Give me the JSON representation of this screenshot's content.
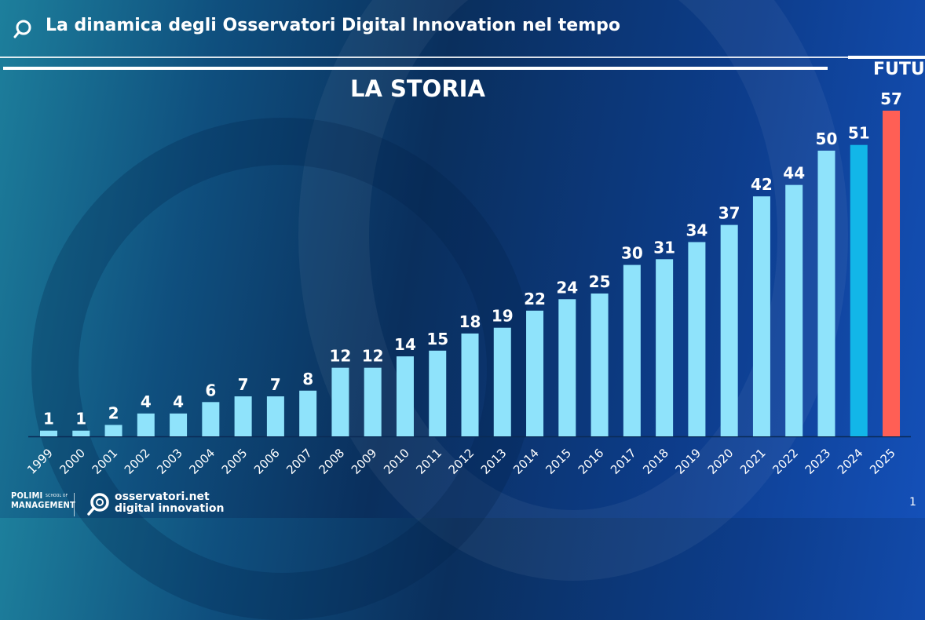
{
  "header": {
    "title": "La dinamica degli Osservatori Digital Innovation nel tempo"
  },
  "section_labels": {
    "history": "LA STORIA",
    "future": "FUTURO"
  },
  "footer": {
    "polimi_line1": "POLIMI",
    "polimi_small": "SCHOOL OF",
    "polimi_line2": "MANAGEMENT",
    "logo_line1": "osservatori.net",
    "logo_line2": "digital innovation",
    "page_number": "1"
  },
  "colors": {
    "history_bar": "#8fe3fb",
    "current_bar": "#12b6e8",
    "future_bar": "#ff5f55",
    "axis": "#0a2a55"
  },
  "chart_data": {
    "type": "bar",
    "categories": [
      "1999",
      "2000",
      "2001",
      "2002",
      "2003",
      "2004",
      "2005",
      "2006",
      "2007",
      "2008",
      "2009",
      "2010",
      "2011",
      "2012",
      "2013",
      "2014",
      "2015",
      "2016",
      "2017",
      "2018",
      "2019",
      "2020",
      "2021",
      "2022",
      "2023",
      "2024",
      "2025"
    ],
    "values": [
      1,
      1,
      2,
      4,
      4,
      6,
      7,
      7,
      8,
      12,
      12,
      14,
      15,
      18,
      19,
      22,
      24,
      25,
      30,
      31,
      34,
      37,
      42,
      44,
      50,
      51,
      57
    ],
    "bar_groups": [
      "history",
      "history",
      "history",
      "history",
      "history",
      "history",
      "history",
      "history",
      "history",
      "history",
      "history",
      "history",
      "history",
      "history",
      "history",
      "history",
      "history",
      "history",
      "history",
      "history",
      "history",
      "history",
      "history",
      "history",
      "history",
      "current",
      "future"
    ],
    "title": "",
    "xlabel": "",
    "ylabel": "",
    "ylim": [
      0,
      57
    ],
    "grid": false,
    "legend": "none",
    "data_labels": true
  }
}
